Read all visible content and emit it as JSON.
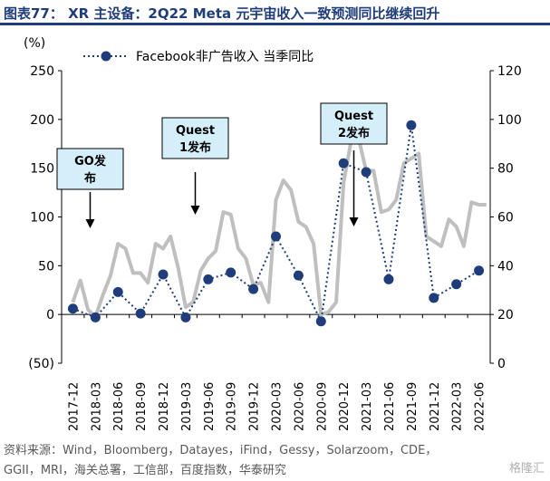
{
  "title": "图表77：  XR 主设备：2Q22 Meta 元宇宙收入一致预测同比继续回升",
  "source_line1": "资料来源：Wind，Bloomberg，Datayes，iFind，Gessy，Solarzoom，CDE，",
  "source_line2": "GGII，MRI，海关总署，工信部，百度指数，华泰研究",
  "watermark": "格隆汇",
  "chart_data": {
    "type": "line",
    "y_unit": "(%)",
    "ylim": [
      -50,
      250
    ],
    "yticks": [
      250,
      200,
      150,
      100,
      50,
      0,
      -50
    ],
    "ytick_labels": [
      "250",
      "200",
      "150",
      "100",
      "50",
      "0",
      "(50)"
    ],
    "y2lim": [
      0,
      120
    ],
    "y2ticks": [
      120,
      100,
      80,
      60,
      40,
      20,
      0
    ],
    "y2tick_labels": [
      "120",
      "100",
      "80",
      "60",
      "40",
      "20",
      "0"
    ],
    "categories": [
      "2017-12",
      "2018-03",
      "2018-06",
      "2018-09",
      "2018-12",
      "2019-03",
      "2019-06",
      "2019-09",
      "2019-12",
      "2020-03",
      "2020-06",
      "2020-09",
      "2020-12",
      "2021-03",
      "2021-06",
      "2021-09",
      "2021-12",
      "2022-03",
      "2022-06"
    ],
    "legend": {
      "position": "top-left",
      "series0_label": "Facebook非广告收入 当季同比"
    },
    "series": [
      {
        "name": "Facebook非广告收入 当季同比",
        "axis": "left",
        "color": "#1f3d7a",
        "style": "dotted-with-markers",
        "values": [
          6,
          -3,
          23,
          1,
          41,
          -3,
          36,
          43,
          26,
          80,
          40,
          -7,
          155,
          146,
          36,
          194,
          17,
          31,
          45
        ]
      },
      {
        "axis": "right",
        "color": "#bfbfbf",
        "style": "thick-line",
        "x": [
          0,
          0.33,
          0.67,
          1,
          1.33,
          1.67,
          2,
          2.33,
          2.67,
          3,
          3.33,
          3.67,
          4,
          4.33,
          4.67,
          5,
          5.33,
          5.67,
          6,
          6.33,
          6.67,
          7,
          7.33,
          7.67,
          8,
          8.33,
          8.67,
          9,
          9.33,
          9.67,
          10,
          10.33,
          10.67,
          11,
          11.33,
          11.67,
          12,
          12.33,
          12.67,
          13,
          13.33,
          13.67,
          14,
          14.33,
          14.67,
          15,
          15.33,
          15.67,
          16,
          16.33,
          16.67,
          17,
          17.33,
          17.67,
          18,
          18.33
        ],
        "values": [
          25,
          34,
          22,
          19,
          28,
          36,
          49,
          47,
          37,
          37,
          33,
          49,
          47,
          52,
          39,
          23,
          25,
          38,
          43,
          46,
          62,
          61,
          47,
          43,
          32,
          33,
          25,
          67,
          75,
          71,
          58,
          56,
          49,
          20,
          21,
          25,
          74,
          91,
          92,
          79,
          79,
          62,
          63,
          67,
          82,
          84,
          86,
          52,
          50,
          48,
          59,
          56,
          48,
          66,
          65,
          65
        ]
      }
    ],
    "annotations": [
      {
        "label_line1": "GO发",
        "label_line2": "布",
        "category": "2018-03"
      },
      {
        "label_line1": "Quest",
        "label_line2": "1发布",
        "category": "2019-03"
      },
      {
        "label_line1": "Quest",
        "label_line2": "2发布",
        "category": "2021-03"
      }
    ]
  }
}
